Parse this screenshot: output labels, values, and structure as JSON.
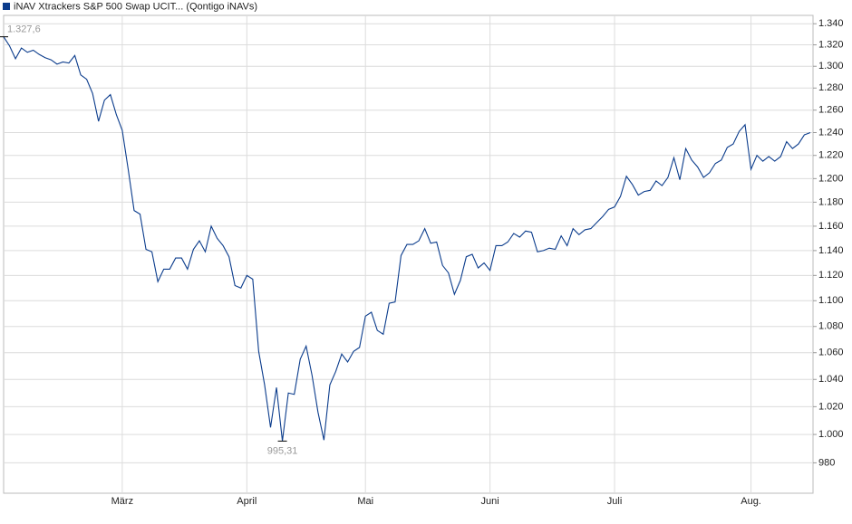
{
  "chart_data": {
    "type": "line",
    "log_y": true,
    "grid": true,
    "categories": [
      null,
      null,
      null,
      null,
      null,
      null,
      null,
      null,
      null,
      null,
      null,
      null,
      null,
      null,
      null,
      null,
      null,
      null,
      null,
      null,
      "März",
      null,
      null,
      null,
      null,
      null,
      null,
      null,
      null,
      null,
      null,
      null,
      null,
      null,
      null,
      null,
      null,
      null,
      null,
      null,
      null,
      "April",
      null,
      null,
      null,
      null,
      null,
      null,
      null,
      null,
      null,
      null,
      null,
      null,
      null,
      null,
      null,
      null,
      null,
      null,
      null,
      "Mai",
      null,
      null,
      null,
      null,
      null,
      null,
      null,
      null,
      null,
      null,
      null,
      null,
      null,
      null,
      null,
      null,
      null,
      null,
      null,
      null,
      "Juni",
      null,
      null,
      null,
      null,
      null,
      null,
      null,
      null,
      null,
      null,
      null,
      null,
      null,
      null,
      null,
      null,
      null,
      null,
      null,
      null,
      "Juli",
      null,
      null,
      null,
      null,
      null,
      null,
      null,
      null,
      null,
      null,
      null,
      null,
      null,
      null,
      null,
      null,
      null,
      null,
      null,
      null,
      null,
      null,
      "Aug.",
      null,
      null,
      null,
      null,
      null,
      null,
      null,
      null,
      null,
      null
    ],
    "series": [
      {
        "name": "iNAV Xtrackers S&P 500 Swap UCIT... (Qontigo iNAVs)",
        "color": "#0b3c8c",
        "values": [
          1327.6,
          1319,
          1307,
          1317,
          1313,
          1315,
          1311,
          1308,
          1306,
          1302,
          1304,
          1303,
          1310,
          1292,
          1288,
          1275,
          1250,
          1269,
          1274,
          1256,
          1242,
          1208,
          1173,
          1170,
          1141,
          1139,
          1115,
          1125,
          1125,
          1134,
          1134,
          1125,
          1141,
          1148,
          1139,
          1160,
          1150,
          1144,
          1135,
          1112,
          1110,
          1120,
          1117,
          1061,
          1036,
          1005,
          1034,
          995.31,
          1030,
          1029,
          1055,
          1065,
          1043,
          1016,
          996,
          1036,
          1046,
          1059,
          1053,
          1061,
          1064,
          1088,
          1091,
          1077,
          1074,
          1098,
          1099,
          1136,
          1145,
          1145,
          1148,
          1158,
          1146,
          1147,
          1128,
          1122,
          1105,
          1116,
          1135,
          1137,
          1126,
          1130,
          1124,
          1144,
          1144,
          1147,
          1154,
          1151,
          1156,
          1155,
          1139,
          1140,
          1142,
          1141,
          1152,
          1144,
          1158,
          1153,
          1157,
          1158,
          1163,
          1168,
          1174,
          1176,
          1185,
          1202,
          1195,
          1186,
          1189,
          1190,
          1198,
          1194,
          1201,
          1218,
          1199,
          1226,
          1216,
          1210,
          1201,
          1205,
          1213,
          1216,
          1227,
          1230,
          1241,
          1247,
          1208,
          1220,
          1215,
          1219,
          1215,
          1219,
          1232,
          1226,
          1230,
          1238,
          1240
        ],
        "value_labels": [
          "1.327,6",
          null,
          null,
          null,
          null,
          null,
          null,
          null,
          null,
          null,
          null,
          null,
          null,
          null,
          null,
          null,
          null,
          null,
          null,
          null,
          null,
          null,
          null,
          null,
          null,
          null,
          null,
          null,
          null,
          null,
          null,
          null,
          null,
          null,
          null,
          null,
          null,
          null,
          null,
          null,
          null,
          null,
          null,
          null,
          null,
          null,
          null,
          "995,31",
          null,
          null,
          null,
          null,
          null,
          null,
          null,
          null,
          null,
          null,
          null,
          null,
          null,
          null,
          null,
          null,
          null,
          null,
          null,
          null,
          null,
          null,
          null,
          null,
          null,
          null,
          null,
          null,
          null,
          null,
          null,
          null,
          null,
          null,
          null,
          null,
          null,
          null,
          null,
          null,
          null,
          null,
          null,
          null,
          null,
          null,
          null,
          null,
          null,
          null,
          null,
          null,
          null,
          null,
          null,
          null,
          null,
          null,
          null,
          null,
          null,
          null,
          null,
          null,
          null,
          null,
          null,
          null,
          null,
          null,
          null,
          null,
          null,
          null,
          null,
          null,
          null,
          null,
          null,
          null,
          null,
          null,
          null,
          null,
          null,
          null,
          null,
          null,
          null
        ]
      }
    ],
    "ylim": [
      959,
      1348
    ],
    "yticks": [
      {
        "value": 980,
        "label": "980"
      },
      {
        "value": 1000,
        "label": "1.000"
      },
      {
        "value": 1020,
        "label": "1.020"
      },
      {
        "value": 1040,
        "label": "1.040"
      },
      {
        "value": 1060,
        "label": "1.060"
      },
      {
        "value": 1080,
        "label": "1.080"
      },
      {
        "value": 1100,
        "label": "1.100"
      },
      {
        "value": 1120,
        "label": "1.120"
      },
      {
        "value": 1140,
        "label": "1.140"
      },
      {
        "value": 1160,
        "label": "1.160"
      },
      {
        "value": 1180,
        "label": "1.180"
      },
      {
        "value": 1200,
        "label": "1.200"
      },
      {
        "value": 1220,
        "label": "1.220"
      },
      {
        "value": 1240,
        "label": "1.240"
      },
      {
        "value": 1260,
        "label": "1.260"
      },
      {
        "value": 1280,
        "label": "1.280"
      },
      {
        "value": 1300,
        "label": "1.300"
      },
      {
        "value": 1320,
        "label": "1.320"
      },
      {
        "value": 1340,
        "label": "1.340"
      }
    ]
  }
}
